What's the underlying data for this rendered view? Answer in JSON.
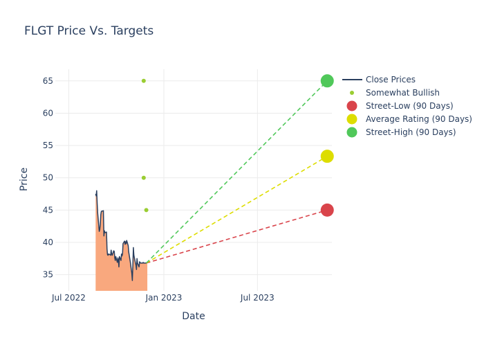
{
  "chart_data": {
    "type": "line",
    "title": "FLGT Price Vs. Targets",
    "xlabel": "Date",
    "ylabel": "Price",
    "x_range": [
      "2022-06-05",
      "2023-11-22"
    ],
    "ylim": [
      32.5,
      66.8
    ],
    "x_ticks": [
      {
        "date": "2022-07-01",
        "label": "Jul 2022"
      },
      {
        "date": "2023-01-01",
        "label": "Jan 2023"
      },
      {
        "date": "2023-07-01",
        "label": "Jul 2023"
      }
    ],
    "y_ticks": [
      35,
      40,
      45,
      50,
      55,
      60,
      65
    ],
    "grid": true,
    "legend_position": "right",
    "legend": [
      {
        "label": "Close Prices",
        "kind": "line",
        "color": "#2a3f5f"
      },
      {
        "label": "Somewhat Bullish",
        "kind": "small-dot",
        "color": "#9acd32"
      },
      {
        "label": "Street-Low (90 Days)",
        "kind": "big-dot",
        "color": "#d9444b"
      },
      {
        "label": "Average Rating (90 Days)",
        "kind": "big-dot",
        "color": "#dddd00"
      },
      {
        "label": "Street-High (90 Days)",
        "kind": "big-dot",
        "color": "#50c85a"
      }
    ],
    "close_prices": {
      "name": "Close Prices",
      "color": "#2a3f5f",
      "fill_color": "#f9a87e",
      "x": [
        "2022-08-22",
        "2022-08-23",
        "2022-08-24",
        "2022-08-25",
        "2022-08-26",
        "2022-08-29",
        "2022-08-30",
        "2022-08-31",
        "2022-09-01",
        "2022-09-02",
        "2022-09-06",
        "2022-09-07",
        "2022-09-08",
        "2022-09-09",
        "2022-09-12",
        "2022-09-13",
        "2022-09-14",
        "2022-09-15",
        "2022-09-16",
        "2022-09-19",
        "2022-09-20",
        "2022-09-21",
        "2022-09-22",
        "2022-09-23",
        "2022-09-26",
        "2022-09-27",
        "2022-09-28",
        "2022-09-29",
        "2022-09-30",
        "2022-10-03",
        "2022-10-04",
        "2022-10-05",
        "2022-10-06",
        "2022-10-07",
        "2022-10-10",
        "2022-10-11",
        "2022-10-12",
        "2022-10-13",
        "2022-10-14",
        "2022-10-17",
        "2022-10-18",
        "2022-10-19",
        "2022-10-20",
        "2022-10-21",
        "2022-10-24",
        "2022-10-25",
        "2022-10-26",
        "2022-10-27",
        "2022-10-28",
        "2022-10-31",
        "2022-11-01",
        "2022-11-02",
        "2022-11-03",
        "2022-11-04",
        "2022-11-07",
        "2022-11-08",
        "2022-11-09",
        "2022-11-10",
        "2022-11-11",
        "2022-11-14",
        "2022-11-15",
        "2022-11-16",
        "2022-11-17",
        "2022-11-18",
        "2022-11-21",
        "2022-11-22",
        "2022-11-23",
        "2022-11-25",
        "2022-11-28",
        "2022-11-29",
        "2022-11-30"
      ],
      "values": [
        47.5,
        47.2,
        48.0,
        46.0,
        44.5,
        41.7,
        42.0,
        42.8,
        44.3,
        44.8,
        44.9,
        41.0,
        41.8,
        41.5,
        41.6,
        39.0,
        38.1,
        38.0,
        38.2,
        38.1,
        38.0,
        38.8,
        38.2,
        38.0,
        38.7,
        38.6,
        37.6,
        37.2,
        37.8,
        36.9,
        37.6,
        37.3,
        36.2,
        37.8,
        37.2,
        38.2,
        37.9,
        38.2,
        39.8,
        40.2,
        39.7,
        40.1,
        39.8,
        40.3,
        39.5,
        38.5,
        38.0,
        37.5,
        37.0,
        35.2,
        34.1,
        36.5,
        39.2,
        38.0,
        36.8,
        36.5,
        35.8,
        37.5,
        36.8,
        36.2,
        37.0,
        36.9,
        36.8,
        36.8,
        36.8,
        36.9,
        36.8,
        36.8,
        36.8,
        36.9,
        36.8
      ]
    },
    "rating_points": {
      "name": "Somewhat Bullish",
      "color": "#9acd32",
      "x": [
        "2022-11-23",
        "2022-11-23",
        "2022-11-28"
      ],
      "values": [
        65,
        50,
        45
      ]
    },
    "projection_start": {
      "x": "2022-11-28",
      "value": 36.8
    },
    "targets": [
      {
        "name": "Street-Low (90 Days)",
        "x": "2023-11-13",
        "value": 45,
        "color": "#d9444b"
      },
      {
        "name": "Average Rating (90 Days)",
        "x": "2023-11-13",
        "value": 53.33,
        "color": "#dddd00"
      },
      {
        "name": "Street-High (90 Days)",
        "x": "2023-11-13",
        "value": 65,
        "color": "#50c85a"
      }
    ]
  }
}
